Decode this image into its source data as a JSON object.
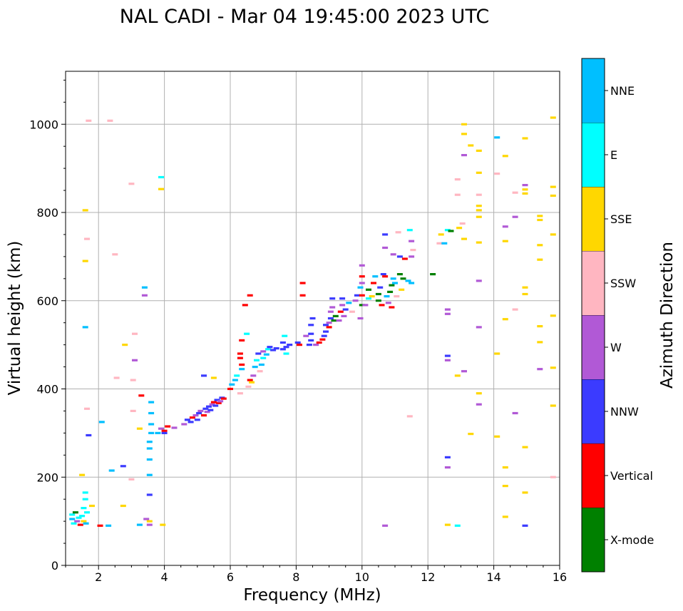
{
  "chart_data": {
    "type": "scatter",
    "title": "NAL CADI - Mar 04 19:45:00 2023 UTC",
    "xlabel": "Frequency (MHz)",
    "ylabel": "Virtual height (km)",
    "xlim": [
      1,
      16
    ],
    "ylim": [
      0,
      1120
    ],
    "xticks": [
      2,
      4,
      6,
      8,
      10,
      12,
      14,
      16
    ],
    "yticks": [
      0,
      200,
      400,
      600,
      800,
      1000
    ],
    "grid": true,
    "colorbar": {
      "label": "Azimuth Direction",
      "categories": [
        {
          "name": "X-mode",
          "color": "#008000"
        },
        {
          "name": "Vertical",
          "color": "#ff0000"
        },
        {
          "name": "NNW",
          "color": "#3b3bff"
        },
        {
          "name": "W",
          "color": "#b159d6"
        },
        {
          "name": "SSW",
          "color": "#ffb6c1"
        },
        {
          "name": "SSE",
          "color": "#ffd700"
        },
        {
          "name": "E",
          "color": "#00ffff"
        },
        {
          "name": "NNE",
          "color": "#00bfff"
        }
      ]
    },
    "points": [
      [
        1.2,
        115,
        "E"
      ],
      [
        1.2,
        105,
        "NNE"
      ],
      [
        1.25,
        95,
        "E"
      ],
      [
        1.3,
        120,
        "X-mode"
      ],
      [
        1.35,
        100,
        "W"
      ],
      [
        1.4,
        108,
        "E"
      ],
      [
        1.45,
        92,
        "Vertical"
      ],
      [
        1.5,
        112,
        "E"
      ],
      [
        1.55,
        130,
        "E"
      ],
      [
        1.55,
        100,
        "SSE"
      ],
      [
        1.6,
        150,
        "E"
      ],
      [
        1.6,
        165,
        "E"
      ],
      [
        1.62,
        95,
        "NNE"
      ],
      [
        1.65,
        120,
        "E"
      ],
      [
        1.5,
        205,
        "SSE"
      ],
      [
        1.6,
        690,
        "SSE"
      ],
      [
        1.6,
        805,
        "SSE"
      ],
      [
        1.65,
        740,
        "SSW"
      ],
      [
        1.6,
        540,
        "NNE"
      ],
      [
        1.65,
        355,
        "SSW"
      ],
      [
        1.7,
        295,
        "NNW"
      ],
      [
        1.7,
        1008,
        "SSW"
      ],
      [
        1.8,
        135,
        "SSE"
      ],
      [
        2.05,
        90,
        "Vertical"
      ],
      [
        2.1,
        325,
        "NNE"
      ],
      [
        2.3,
        90,
        "NNE"
      ],
      [
        2.35,
        1008,
        "SSW"
      ],
      [
        2.4,
        215,
        "NNE"
      ],
      [
        2.55,
        425,
        "SSW"
      ],
      [
        2.5,
        705,
        "SSW"
      ],
      [
        2.75,
        225,
        "NNW"
      ],
      [
        2.75,
        135,
        "SSE"
      ],
      [
        2.8,
        500,
        "SSE"
      ],
      [
        3.0,
        865,
        "SSW"
      ],
      [
        3.0,
        195,
        "SSW"
      ],
      [
        3.05,
        420,
        "SSW"
      ],
      [
        3.05,
        350,
        "SSW"
      ],
      [
        3.1,
        525,
        "SSW"
      ],
      [
        3.1,
        465,
        "W"
      ],
      [
        3.25,
        92,
        "NNE"
      ],
      [
        3.25,
        310,
        "SSE"
      ],
      [
        3.3,
        385,
        "Vertical"
      ],
      [
        3.4,
        630,
        "NNE"
      ],
      [
        3.4,
        612,
        "W"
      ],
      [
        3.45,
        105,
        "W"
      ],
      [
        3.55,
        92,
        "W"
      ],
      [
        3.55,
        100,
        "SSE"
      ],
      [
        3.55,
        160,
        "NNW"
      ],
      [
        3.55,
        205,
        "NNE"
      ],
      [
        3.55,
        240,
        "NNE"
      ],
      [
        3.55,
        265,
        "NNE"
      ],
      [
        3.55,
        280,
        "NNE"
      ],
      [
        3.6,
        300,
        "NNE"
      ],
      [
        3.6,
        320,
        "NNE"
      ],
      [
        3.6,
        345,
        "NNE"
      ],
      [
        3.6,
        370,
        "NNE"
      ],
      [
        3.8,
        300,
        "NNE"
      ],
      [
        3.9,
        310,
        "W"
      ],
      [
        3.9,
        880,
        "E"
      ],
      [
        3.9,
        853,
        "SSE"
      ],
      [
        3.95,
        92,
        "SSE"
      ],
      [
        4.0,
        305,
        "Vertical"
      ],
      [
        4.0,
        300,
        "NNW"
      ],
      [
        4.1,
        315,
        "Vertical"
      ],
      [
        4.3,
        312,
        "W"
      ],
      [
        4.6,
        320,
        "W"
      ],
      [
        4.7,
        330,
        "NNW"
      ],
      [
        4.8,
        325,
        "NNW"
      ],
      [
        4.85,
        335,
        "Vertical"
      ],
      [
        4.95,
        340,
        "W"
      ],
      [
        5.0,
        330,
        "NNW"
      ],
      [
        5.05,
        345,
        "NNW"
      ],
      [
        5.1,
        350,
        "W"
      ],
      [
        5.2,
        340,
        "Vertical"
      ],
      [
        5.25,
        355,
        "NNW"
      ],
      [
        5.3,
        348,
        "W"
      ],
      [
        5.35,
        360,
        "NNW"
      ],
      [
        5.4,
        352,
        "NNW"
      ],
      [
        5.45,
        365,
        "W"
      ],
      [
        5.5,
        370,
        "Vertical"
      ],
      [
        5.55,
        362,
        "NNW"
      ],
      [
        5.6,
        375,
        "NNW"
      ],
      [
        5.65,
        368,
        "Vertical"
      ],
      [
        5.7,
        372,
        "W"
      ],
      [
        5.75,
        380,
        "NNW"
      ],
      [
        5.8,
        378,
        "Vertical"
      ],
      [
        5.5,
        425,
        "SSE"
      ],
      [
        5.2,
        430,
        "NNW"
      ],
      [
        6.0,
        400,
        "Vertical"
      ],
      [
        6.05,
        410,
        "NNE"
      ],
      [
        6.15,
        420,
        "NNE"
      ],
      [
        6.2,
        430,
        "E"
      ],
      [
        6.3,
        470,
        "Vertical"
      ],
      [
        6.3,
        480,
        "Vertical"
      ],
      [
        6.35,
        455,
        "Vertical"
      ],
      [
        6.35,
        445,
        "NNE"
      ],
      [
        6.3,
        390,
        "SSW"
      ],
      [
        6.35,
        510,
        "Vertical"
      ],
      [
        6.45,
        590,
        "Vertical"
      ],
      [
        6.5,
        525,
        "E"
      ],
      [
        6.6,
        612,
        "Vertical"
      ],
      [
        6.55,
        405,
        "SSW"
      ],
      [
        6.6,
        420,
        "Vertical"
      ],
      [
        6.65,
        415,
        "SSE"
      ],
      [
        6.7,
        430,
        "W"
      ],
      [
        6.75,
        450,
        "NNE"
      ],
      [
        6.8,
        465,
        "E"
      ],
      [
        6.85,
        480,
        "NNW"
      ],
      [
        6.9,
        440,
        "SSW"
      ],
      [
        6.95,
        455,
        "NNE"
      ],
      [
        7.0,
        470,
        "E"
      ],
      [
        7.0,
        485,
        "W"
      ],
      [
        7.1,
        478,
        "NNE"
      ],
      [
        7.15,
        490,
        "E"
      ],
      [
        7.2,
        495,
        "NNW"
      ],
      [
        7.3,
        488,
        "NNW"
      ],
      [
        7.4,
        492,
        "NNW"
      ],
      [
        7.6,
        505,
        "NNW"
      ],
      [
        7.65,
        520,
        "E"
      ],
      [
        7.6,
        490,
        "NNW"
      ],
      [
        7.7,
        495,
        "NNW"
      ],
      [
        7.7,
        480,
        "E"
      ],
      [
        7.8,
        500,
        "NNW"
      ],
      [
        8.05,
        505,
        "NNW"
      ],
      [
        8.1,
        500,
        "Vertical"
      ],
      [
        8.2,
        612,
        "Vertical"
      ],
      [
        8.2,
        640,
        "Vertical"
      ],
      [
        8.3,
        520,
        "W"
      ],
      [
        8.4,
        500,
        "NNW"
      ],
      [
        8.45,
        510,
        "NNW"
      ],
      [
        8.45,
        525,
        "NNW"
      ],
      [
        8.45,
        545,
        "NNW"
      ],
      [
        8.5,
        560,
        "NNW"
      ],
      [
        8.6,
        500,
        "W"
      ],
      [
        8.7,
        505,
        "Vertical"
      ],
      [
        8.8,
        512,
        "Vertical"
      ],
      [
        8.85,
        520,
        "NNW"
      ],
      [
        8.9,
        530,
        "NNW"
      ],
      [
        8.9,
        545,
        "NNW"
      ],
      [
        9.0,
        540,
        "Vertical"
      ],
      [
        9.0,
        550,
        "W"
      ],
      [
        9.05,
        560,
        "NNW"
      ],
      [
        9.05,
        575,
        "W"
      ],
      [
        9.1,
        585,
        "W"
      ],
      [
        9.1,
        605,
        "NNW"
      ],
      [
        9.15,
        555,
        "X-mode"
      ],
      [
        9.2,
        565,
        "X-mode"
      ],
      [
        9.3,
        555,
        "W"
      ],
      [
        9.35,
        575,
        "Vertical"
      ],
      [
        9.4,
        590,
        "W"
      ],
      [
        9.4,
        605,
        "NNW"
      ],
      [
        9.45,
        565,
        "W"
      ],
      [
        9.5,
        580,
        "NNW"
      ],
      [
        9.6,
        595,
        "NNE"
      ],
      [
        9.7,
        575,
        "SSW"
      ],
      [
        9.8,
        600,
        "W"
      ],
      [
        9.85,
        612,
        "NNW"
      ],
      [
        9.95,
        560,
        "W"
      ],
      [
        9.95,
        630,
        "NNE"
      ],
      [
        10.0,
        590,
        "X-mode"
      ],
      [
        10.0,
        612,
        "Vertical"
      ],
      [
        10.0,
        640,
        "W"
      ],
      [
        10.0,
        655,
        "Vertical"
      ],
      [
        10.0,
        680,
        "W"
      ],
      [
        10.1,
        590,
        "W"
      ],
      [
        10.2,
        605,
        "E"
      ],
      [
        10.2,
        625,
        "X-mode"
      ],
      [
        10.3,
        610,
        "SSE"
      ],
      [
        10.35,
        640,
        "Vertical"
      ],
      [
        10.4,
        655,
        "NNE"
      ],
      [
        10.5,
        600,
        "X-mode"
      ],
      [
        10.5,
        615,
        "X-mode"
      ],
      [
        10.55,
        630,
        "NNW"
      ],
      [
        10.6,
        590,
        "Vertical"
      ],
      [
        10.65,
        660,
        "NNW"
      ],
      [
        10.7,
        655,
        "Vertical"
      ],
      [
        10.7,
        720,
        "W"
      ],
      [
        10.7,
        750,
        "NNW"
      ],
      [
        10.75,
        610,
        "NNE"
      ],
      [
        10.8,
        595,
        "W"
      ],
      [
        10.85,
        620,
        "X-mode"
      ],
      [
        10.9,
        635,
        "X-mode"
      ],
      [
        10.9,
        585,
        "Vertical"
      ],
      [
        10.95,
        650,
        "NNE"
      ],
      [
        10.95,
        705,
        "W"
      ],
      [
        11.0,
        640,
        "NNE"
      ],
      [
        11.05,
        610,
        "SSW"
      ],
      [
        11.15,
        660,
        "X-mode"
      ],
      [
        11.15,
        700,
        "NNW"
      ],
      [
        11.1,
        755,
        "SSW"
      ],
      [
        11.2,
        625,
        "SSE"
      ],
      [
        11.25,
        650,
        "X-mode"
      ],
      [
        11.3,
        695,
        "Vertical"
      ],
      [
        11.4,
        645,
        "NNE"
      ],
      [
        11.45,
        760,
        "E"
      ],
      [
        11.5,
        640,
        "NNE"
      ],
      [
        11.5,
        700,
        "W"
      ],
      [
        11.55,
        715,
        "SSW"
      ],
      [
        11.5,
        735,
        "W"
      ],
      [
        11.45,
        338,
        "SSW"
      ],
      [
        12.15,
        660,
        "X-mode"
      ],
      [
        12.35,
        730,
        "SSW"
      ],
      [
        12.5,
        730,
        "NNE"
      ],
      [
        12.4,
        750,
        "SSE"
      ],
      [
        12.6,
        760,
        "E"
      ],
      [
        12.7,
        758,
        "X-mode"
      ],
      [
        12.95,
        765,
        "SSE"
      ],
      [
        13.05,
        775,
        "SSW"
      ],
      [
        13.1,
        740,
        "SSE"
      ],
      [
        12.6,
        580,
        "W"
      ],
      [
        12.6,
        570,
        "W"
      ],
      [
        12.6,
        475,
        "NNW"
      ],
      [
        12.6,
        465,
        "W"
      ],
      [
        12.6,
        245,
        "NNW"
      ],
      [
        12.6,
        222,
        "W"
      ],
      [
        12.6,
        92,
        "SSE"
      ],
      [
        12.9,
        90,
        "E"
      ],
      [
        12.9,
        875,
        "SSW"
      ],
      [
        12.9,
        840,
        "SSW"
      ],
      [
        12.9,
        430,
        "SSE"
      ],
      [
        13.1,
        1000,
        "SSE"
      ],
      [
        13.1,
        978,
        "SSE"
      ],
      [
        13.1,
        930,
        "W"
      ],
      [
        13.1,
        440,
        "W"
      ],
      [
        13.3,
        952,
        "SSE"
      ],
      [
        13.3,
        298,
        "SSE"
      ],
      [
        13.55,
        940,
        "SSE"
      ],
      [
        13.55,
        890,
        "SSE"
      ],
      [
        13.55,
        840,
        "SSW"
      ],
      [
        13.55,
        815,
        "SSE"
      ],
      [
        13.55,
        805,
        "SSE"
      ],
      [
        13.55,
        790,
        "SSE"
      ],
      [
        13.55,
        732,
        "SSE"
      ],
      [
        13.55,
        645,
        "W"
      ],
      [
        13.55,
        540,
        "W"
      ],
      [
        13.55,
        390,
        "SSE"
      ],
      [
        13.55,
        365,
        "W"
      ],
      [
        14.1,
        970,
        "NNE"
      ],
      [
        14.1,
        888,
        "SSW"
      ],
      [
        14.1,
        480,
        "SSE"
      ],
      [
        14.1,
        292,
        "SSE"
      ],
      [
        14.35,
        928,
        "SSE"
      ],
      [
        14.35,
        768,
        "W"
      ],
      [
        14.35,
        735,
        "SSE"
      ],
      [
        14.35,
        558,
        "SSE"
      ],
      [
        14.35,
        222,
        "SSE"
      ],
      [
        14.35,
        180,
        "SSE"
      ],
      [
        14.35,
        110,
        "SSE"
      ],
      [
        14.65,
        845,
        "SSW"
      ],
      [
        14.65,
        790,
        "W"
      ],
      [
        14.65,
        580,
        "SSW"
      ],
      [
        14.65,
        345,
        "W"
      ],
      [
        14.95,
        968,
        "SSE"
      ],
      [
        14.95,
        862,
        "W"
      ],
      [
        14.95,
        852,
        "SSE"
      ],
      [
        14.95,
        843,
        "SSE"
      ],
      [
        14.95,
        630,
        "SSE"
      ],
      [
        14.95,
        615,
        "SSE"
      ],
      [
        14.95,
        268,
        "SSE"
      ],
      [
        14.95,
        165,
        "SSE"
      ],
      [
        14.95,
        90,
        "NNW"
      ],
      [
        15.4,
        792,
        "SSE"
      ],
      [
        15.4,
        783,
        "SSE"
      ],
      [
        15.4,
        726,
        "SSE"
      ],
      [
        15.4,
        693,
        "SSE"
      ],
      [
        15.4,
        542,
        "SSE"
      ],
      [
        15.4,
        506,
        "SSE"
      ],
      [
        15.4,
        445,
        "W"
      ],
      [
        15.8,
        1015,
        "SSE"
      ],
      [
        15.8,
        858,
        "SSE"
      ],
      [
        15.8,
        838,
        "SSE"
      ],
      [
        15.8,
        750,
        "SSE"
      ],
      [
        15.8,
        566,
        "SSE"
      ],
      [
        15.8,
        448,
        "SSE"
      ],
      [
        15.8,
        362,
        "SSE"
      ],
      [
        15.8,
        200,
        "SSW"
      ],
      [
        10.7,
        90,
        "W"
      ]
    ]
  }
}
